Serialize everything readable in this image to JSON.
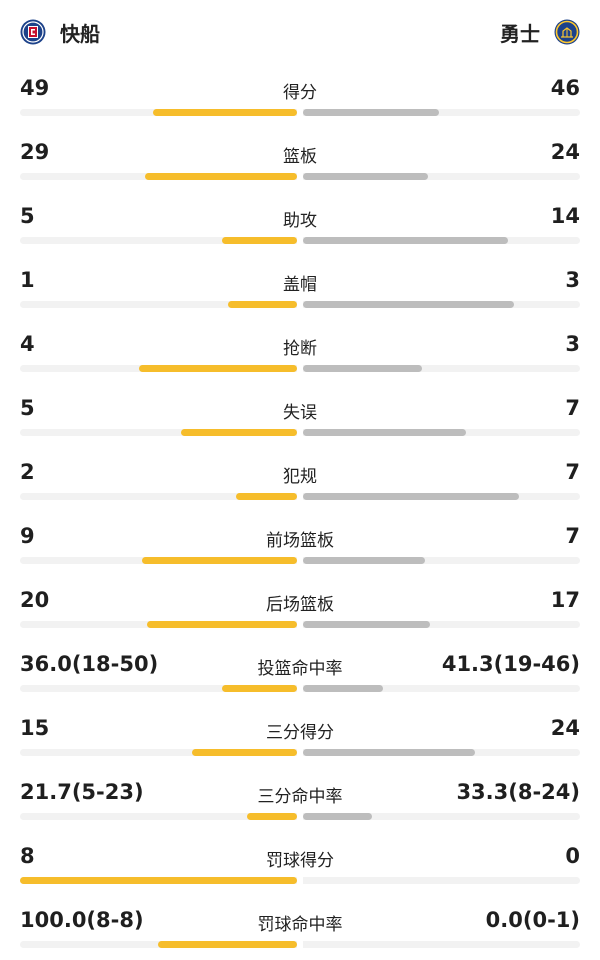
{
  "teams": {
    "home": {
      "name": "快船",
      "logo_icon": "clippers-logo-icon",
      "bar_color": "#f6bd2b"
    },
    "away": {
      "name": "勇士",
      "logo_icon": "warriors-logo-icon",
      "bar_color": "#bdbdbd"
    }
  },
  "stats": [
    {
      "label": "得分",
      "left": "49",
      "right": "46",
      "left_fill": 0.52,
      "right_fill": 0.49
    },
    {
      "label": "篮板",
      "left": "29",
      "right": "24",
      "left_fill": 0.55,
      "right_fill": 0.45
    },
    {
      "label": "助攻",
      "left": "5",
      "right": "14",
      "left_fill": 0.27,
      "right_fill": 0.74
    },
    {
      "label": "盖帽",
      "left": "1",
      "right": "3",
      "left_fill": 0.25,
      "right_fill": 0.76
    },
    {
      "label": "抢断",
      "left": "4",
      "right": "3",
      "left_fill": 0.57,
      "right_fill": 0.43
    },
    {
      "label": "失误",
      "left": "5",
      "right": "7",
      "left_fill": 0.42,
      "right_fill": 0.59
    },
    {
      "label": "犯规",
      "left": "2",
      "right": "7",
      "left_fill": 0.22,
      "right_fill": 0.78
    },
    {
      "label": "前场篮板",
      "left": "9",
      "right": "7",
      "left_fill": 0.56,
      "right_fill": 0.44
    },
    {
      "label": "后场篮板",
      "left": "20",
      "right": "17",
      "left_fill": 0.54,
      "right_fill": 0.46
    },
    {
      "label": "投篮命中率",
      "left": "36.0(18-50)",
      "right": "41.3(19-46)",
      "left_fill": 0.27,
      "right_fill": 0.29
    },
    {
      "label": "三分得分",
      "left": "15",
      "right": "24",
      "left_fill": 0.38,
      "right_fill": 0.62
    },
    {
      "label": "三分命中率",
      "left": "21.7(5-23)",
      "right": "33.3(8-24)",
      "left_fill": 0.18,
      "right_fill": 0.25
    },
    {
      "label": "罚球得分",
      "left": "8",
      "right": "0",
      "left_fill": 1.0,
      "right_fill": 0.0
    },
    {
      "label": "罚球命中率",
      "left": "100.0(8-8)",
      "right": "0.0(0-1)",
      "left_fill": 0.5,
      "right_fill": 0.0
    }
  ]
}
